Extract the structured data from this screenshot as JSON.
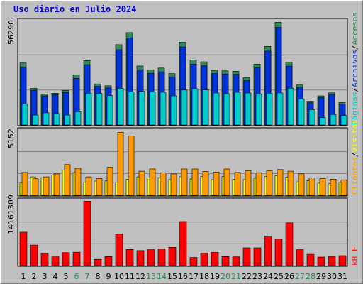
{
  "title": "Uso diario en Julio 2024",
  "colors": {
    "accesos": "#2e8b57",
    "archivos": "#0033dd",
    "paginas": "#00cccc",
    "visitas": "#ffff00",
    "clientes": "#ff9900",
    "kbf": "#ff0000",
    "weekend_day": "#2e8b57",
    "weekday": "#000000"
  },
  "chart_data": [
    {
      "type": "bar",
      "name": "accesos-archivos-paginas",
      "ymax_label": "56290",
      "ylim": [
        0,
        56290
      ],
      "legend_labels": [
        "Accesos",
        "Archivos",
        "Páginas"
      ],
      "categories": [
        "1",
        "2",
        "3",
        "4",
        "5",
        "6",
        "7",
        "8",
        "9",
        "10",
        "11",
        "12",
        "13",
        "14",
        "15",
        "16",
        "17",
        "18",
        "19",
        "20",
        "21",
        "22",
        "23",
        "24",
        "25",
        "26",
        "27",
        "28",
        "29",
        "30",
        "31"
      ],
      "series": [
        {
          "name": "Accesos",
          "values": [
            33200,
            19600,
            16500,
            17000,
            18500,
            26800,
            34500,
            22000,
            21000,
            43000,
            49500,
            31600,
            29500,
            30500,
            27500,
            44300,
            34800,
            33800,
            29300,
            29000,
            28800,
            25300,
            32600,
            42100,
            55000,
            33600,
            21400,
            12700,
            15600,
            17200,
            12000
          ]
        },
        {
          "name": "Archivos",
          "values": [
            31000,
            18600,
            15600,
            16200,
            17400,
            25000,
            32300,
            20600,
            19800,
            40300,
            46600,
            29600,
            27700,
            28500,
            25800,
            41800,
            32600,
            31700,
            27500,
            27300,
            27100,
            23800,
            30600,
            39600,
            52300,
            31500,
            20100,
            11900,
            14700,
            16100,
            11300
          ]
        },
        {
          "name": "Páginas",
          "values": [
            11300,
            5300,
            6500,
            6100,
            5300,
            7100,
            17000,
            16900,
            15800,
            19600,
            17600,
            18000,
            17700,
            17500,
            15600,
            18700,
            19400,
            18800,
            17100,
            16700,
            17500,
            17100,
            16600,
            17000,
            17100,
            19700,
            14000,
            8200,
            3900,
            5600,
            5100
          ]
        }
      ]
    },
    {
      "type": "bar",
      "name": "visitas-clientes",
      "ymax_label": "5152",
      "ylim": [
        0,
        5152
      ],
      "legend_labels": [
        "Visitas",
        "Clientes"
      ],
      "categories": [
        "1",
        "2",
        "3",
        "4",
        "5",
        "6",
        "7",
        "8",
        "9",
        "10",
        "11",
        "12",
        "13",
        "14",
        "15",
        "16",
        "17",
        "18",
        "19",
        "20",
        "21",
        "22",
        "23",
        "24",
        "25",
        "26",
        "27",
        "28",
        "29",
        "30",
        "31"
      ],
      "series": [
        {
          "name": "Visitas",
          "values": [
            1000,
            1450,
            1380,
            1600,
            1980,
            1800,
            1050,
            1120,
            1130,
            1030,
            1260,
            1450,
            1370,
            1380,
            1240,
            1460,
            1280,
            1480,
            1230,
            1480,
            1270,
            1240,
            1350,
            1480,
            1540,
            1420,
            1060,
            1160,
            960,
            920,
            1030
          ]
        },
        {
          "name": "Clientes",
          "values": [
            1800,
            1300,
            1450,
            1680,
            2420,
            2120,
            1450,
            1320,
            2200,
            4970,
            4680,
            1900,
            2080,
            1780,
            1680,
            2070,
            2070,
            1880,
            1830,
            2070,
            1800,
            1930,
            1780,
            1930,
            2030,
            1900,
            1690,
            1360,
            1310,
            1270,
            1220
          ]
        }
      ]
    },
    {
      "type": "bar",
      "name": "kb-f",
      "ymax_label": "14161309",
      "ylim": [
        0,
        14161309
      ],
      "legend_labels": [
        "kB F"
      ],
      "categories": [
        "1",
        "2",
        "3",
        "4",
        "5",
        "6",
        "7",
        "8",
        "9",
        "10",
        "11",
        "12",
        "13",
        "14",
        "15",
        "16",
        "17",
        "18",
        "19",
        "20",
        "21",
        "22",
        "23",
        "24",
        "25",
        "26",
        "27",
        "28",
        "29",
        "30",
        "31"
      ],
      "weekend_days": [
        "6",
        "7",
        "13",
        "14",
        "20",
        "21",
        "27",
        "28"
      ],
      "series": [
        {
          "name": "kB F",
          "values": [
            7250000,
            4450000,
            2650000,
            2050000,
            2800000,
            2900000,
            13950000,
            1350000,
            1950000,
            6850000,
            3500000,
            3250000,
            3450000,
            3650000,
            3950000,
            9550000,
            1750000,
            2700000,
            2850000,
            1950000,
            1900000,
            3850000,
            3850000,
            6350000,
            5800000,
            9250000,
            3450000,
            2450000,
            1850000,
            2000000,
            2150000
          ]
        }
      ]
    }
  ]
}
